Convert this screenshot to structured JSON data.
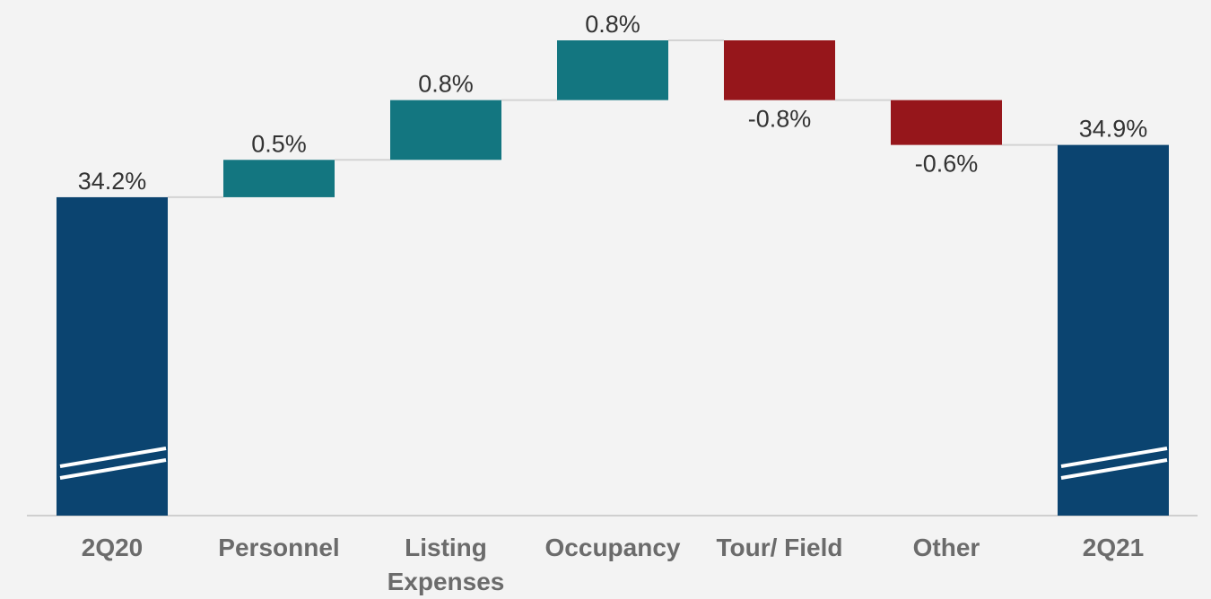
{
  "chart_data": {
    "type": "waterfall",
    "categories": [
      "2Q20",
      "Personnel",
      "Listing Expenses",
      "Occupancy",
      "Tour/ Field",
      "Other",
      "2Q21"
    ],
    "values": [
      34.2,
      0.5,
      0.8,
      0.8,
      -0.8,
      -0.6,
      34.9
    ],
    "value_labels": [
      "34.2%",
      "0.5%",
      "0.8%",
      "0.8%",
      "-0.8%",
      "-0.6%",
      "34.9%"
    ],
    "colors": {
      "total": "#0b4470",
      "increase": "#137680",
      "decrease": "#96161b"
    }
  }
}
